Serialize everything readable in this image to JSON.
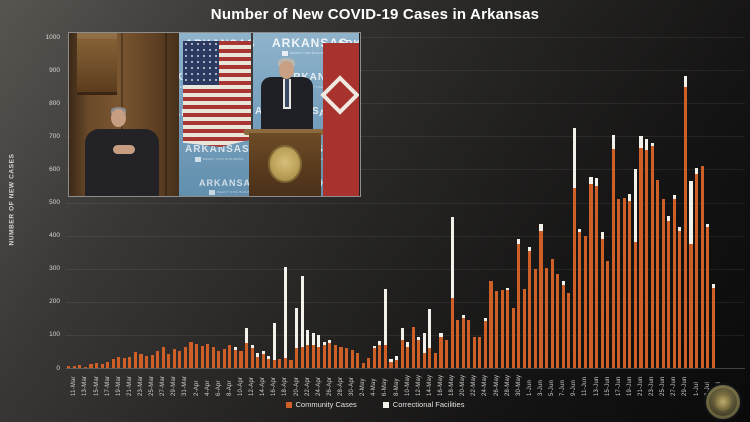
{
  "title": "Number of New COVID-19 Cases in Arkansas",
  "y_axis_title": "NUMBER OF NEW CASES",
  "legend": {
    "community": "Community Cases",
    "correctional": "Correctional Facilities"
  },
  "colors": {
    "community": "#CE5F27",
    "correctional": "#F3F1EA",
    "axis_text": "#d8d6d2",
    "title_text": "#ffffff"
  },
  "video_overlay": {
    "backdrop_text": "ARKANSAS",
    "backdrop_subtext": "READY FOR BUSINESS",
    "flag_text": "ARKANSAS"
  },
  "chart_data": {
    "type": "bar",
    "stacked": true,
    "title": "Number of New COVID-19 Cases in Arkansas",
    "xlabel": "",
    "ylabel": "NUMBER OF NEW CASES",
    "ylim": [
      0,
      1000
    ],
    "ytick_step": 100,
    "xtick_every": 2,
    "grid": true,
    "legend_position": "bottom",
    "x": [
      "11-Mar",
      "12-Mar",
      "13-Mar",
      "14-Mar",
      "15-Mar",
      "16-Mar",
      "17-Mar",
      "18-Mar",
      "19-Mar",
      "20-Mar",
      "21-Mar",
      "22-Mar",
      "23-Mar",
      "24-Mar",
      "25-Mar",
      "26-Mar",
      "27-Mar",
      "28-Mar",
      "29-Mar",
      "30-Mar",
      "31-Mar",
      "1-Apr",
      "2-Apr",
      "3-Apr",
      "4-Apr",
      "5-Apr",
      "6-Apr",
      "7-Apr",
      "8-Apr",
      "9-Apr",
      "10-Apr",
      "11-Apr",
      "12-Apr",
      "13-Apr",
      "14-Apr",
      "15-Apr",
      "16-Apr",
      "17-Apr",
      "18-Apr",
      "19-Apr",
      "20-Apr",
      "21-Apr",
      "22-Apr",
      "23-Apr",
      "24-Apr",
      "25-Apr",
      "26-Apr",
      "27-Apr",
      "28-Apr",
      "29-Apr",
      "30-Apr",
      "1-May",
      "2-May",
      "3-May",
      "4-May",
      "5-May",
      "6-May",
      "7-May",
      "8-May",
      "9-May",
      "10-May",
      "11-May",
      "12-May",
      "13-May",
      "14-May",
      "15-May",
      "16-May",
      "17-May",
      "18-May",
      "19-May",
      "20-May",
      "21-May",
      "22-May",
      "23-May",
      "24-May",
      "25-May",
      "26-May",
      "27-May",
      "28-May",
      "29-May",
      "30-May",
      "31-May",
      "1-Jun",
      "2-Jun",
      "3-Jun",
      "4-Jun",
      "5-Jun",
      "6-Jun",
      "7-Jun",
      "8-Jun",
      "9-Jun",
      "10-Jun",
      "11-Jun",
      "12-Jun",
      "13-Jun",
      "14-Jun",
      "15-Jun",
      "16-Jun",
      "17-Jun",
      "18-Jun",
      "19-Jun",
      "20-Jun",
      "21-Jun",
      "22-Jun",
      "23-Jun",
      "24-Jun",
      "25-Jun",
      "26-Jun",
      "27-Jun",
      "28-Jun",
      "29-Jun",
      "30-Jun",
      "1-Jul",
      "2-Jul",
      "3-Jul",
      "4-Jul",
      "5-Jul"
    ],
    "series": [
      {
        "name": "Community Cases",
        "color": "#CE5F27",
        "values": [
          6,
          6,
          9,
          4,
          12,
          14,
          11,
          18,
          28,
          34,
          30,
          32,
          48,
          42,
          36,
          40,
          50,
          62,
          42,
          58,
          52,
          62,
          78,
          72,
          66,
          72,
          62,
          52,
          56,
          70,
          55,
          50,
          75,
          60,
          32,
          42,
          26,
          24,
          28,
          30,
          25,
          60,
          65,
          70,
          70,
          62,
          70,
          75,
          70,
          65,
          60,
          55,
          45,
          15,
          30,
          60,
          70,
          70,
          18,
          24,
          85,
          65,
          123,
          85,
          45,
          60,
          45,
          95,
          85,
          212,
          146,
          151,
          146,
          95,
          95,
          141,
          263,
          232,
          236,
          235,
          182,
          375,
          238,
          355,
          300,
          415,
          302,
          330,
          285,
          250,
          228,
          545,
          410,
          400,
          555,
          550,
          390,
          324,
          663,
          512,
          515,
          505,
          380,
          665,
          658,
          670,
          568,
          512,
          445,
          510,
          415,
          848,
          375,
          585,
          610,
          425,
          242
        ]
      },
      {
        "name": "Correctional Facilities",
        "color": "#F3F1EA",
        "values": [
          0,
          0,
          0,
          0,
          0,
          0,
          0,
          0,
          0,
          0,
          0,
          0,
          0,
          0,
          0,
          0,
          0,
          0,
          0,
          0,
          0,
          0,
          0,
          0,
          0,
          0,
          0,
          0,
          0,
          0,
          10,
          0,
          45,
          10,
          14,
          8,
          10,
          112,
          0,
          274,
          0,
          122,
          213,
          46,
          36,
          38,
          10,
          10,
          0,
          0,
          0,
          0,
          0,
          0,
          0,
          8,
          12,
          168,
          10,
          12,
          36,
          15,
          0,
          10,
          60,
          117,
          0,
          10,
          0,
          245,
          0,
          10,
          0,
          0,
          0,
          10,
          0,
          0,
          0,
          8,
          0,
          15,
          0,
          12,
          0,
          20,
          0,
          0,
          0,
          12,
          0,
          180,
          10,
          0,
          22,
          25,
          22,
          0,
          42,
          0,
          0,
          22,
          220,
          35,
          34,
          10,
          0,
          0,
          15,
          12,
          12,
          35,
          190,
          18,
          0,
          10,
          13
        ]
      }
    ]
  }
}
